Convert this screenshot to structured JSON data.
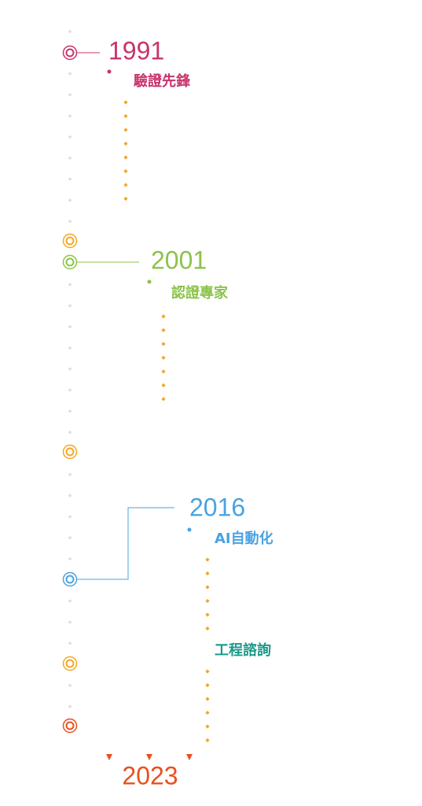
{
  "milestones": [
    {
      "year": "1991",
      "label": "驗證先鋒"
    },
    {
      "year": "2001",
      "label": "認證專家"
    },
    {
      "year": "2016",
      "label": "AI自動化",
      "sublabel": "工程諮詢"
    }
  ],
  "end_year": "2023"
}
